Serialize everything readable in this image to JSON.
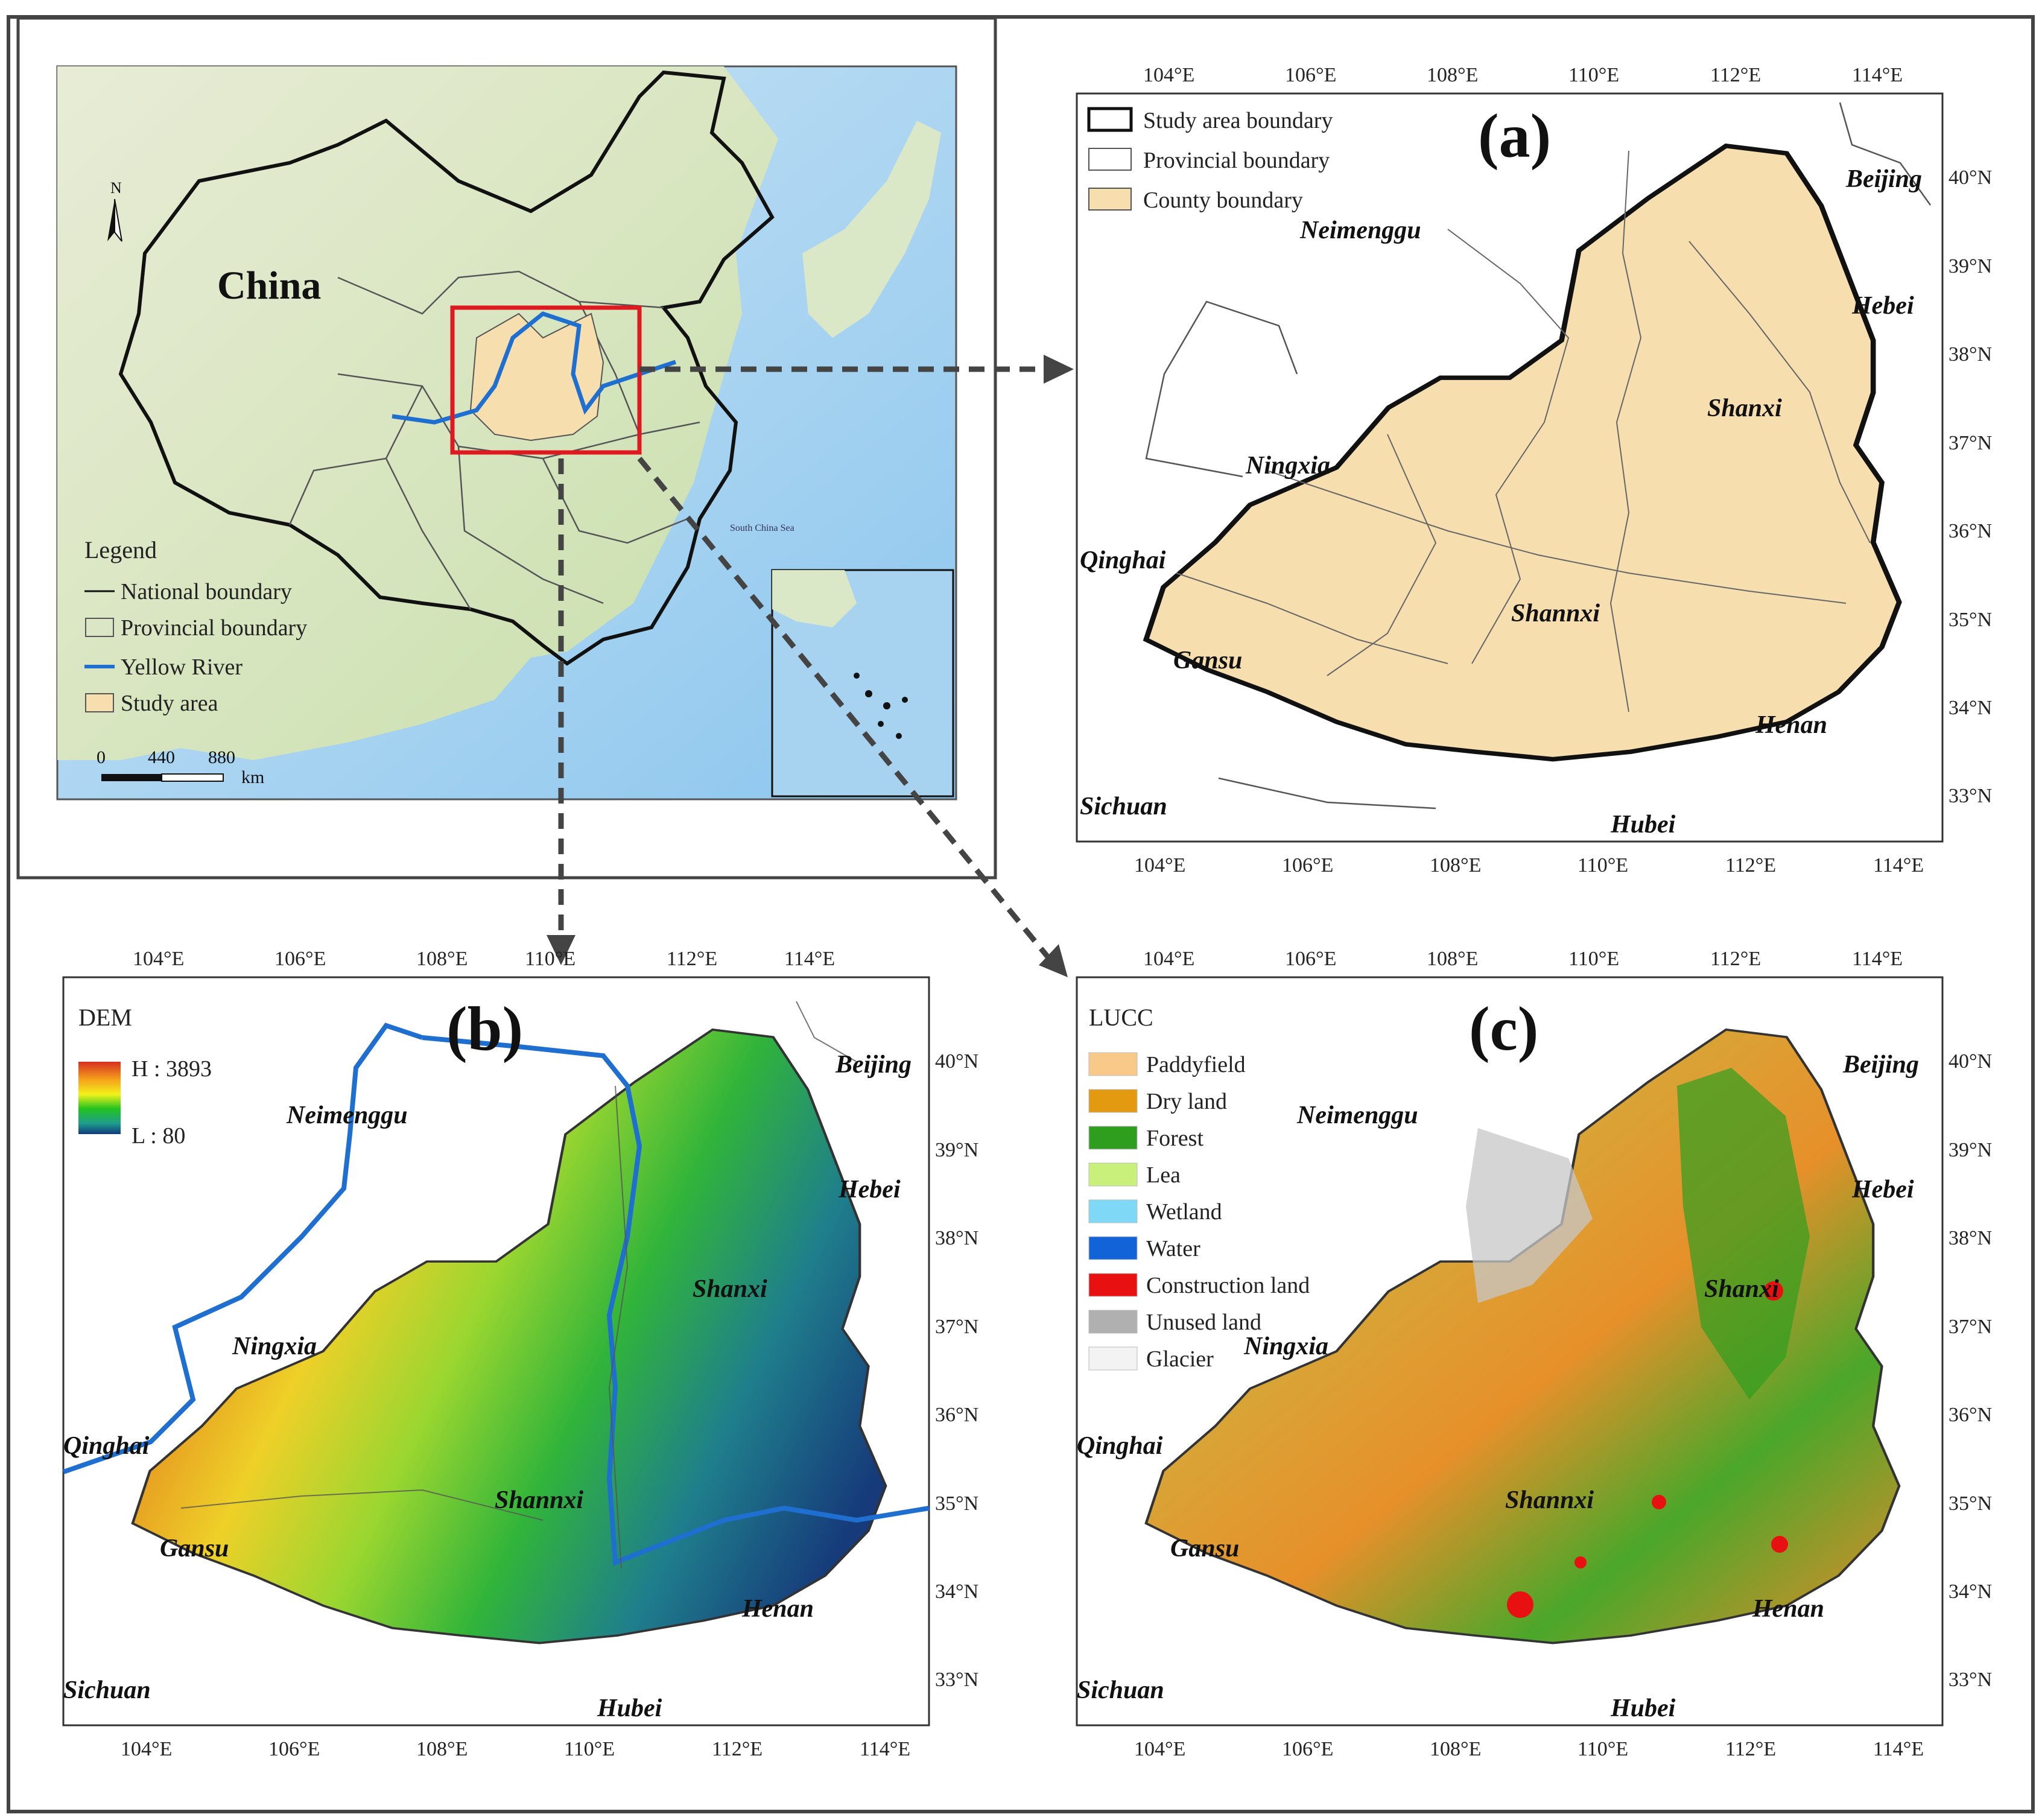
{
  "inset": {
    "country_label": "China",
    "north": "N",
    "legend": {
      "title": "Legend",
      "items": [
        {
          "label": "National boundary",
          "color": "#000000"
        },
        {
          "label": "Provincial boundary",
          "color": "#555555"
        },
        {
          "label": "Yellow River",
          "color": "#1f6fd1"
        },
        {
          "label": "Study area",
          "color": "#f6deaf"
        }
      ]
    },
    "scale": {
      "ticks": [
        "0",
        "440",
        "880"
      ],
      "unit": "km"
    },
    "sea_labels": [
      "South China Sea"
    ]
  },
  "panel_a": {
    "label": "(a)",
    "legend": [
      {
        "label": "Study area boundary"
      },
      {
        "label": "Provincial boundary"
      },
      {
        "label": "County boundary",
        "color": "#f6deaf"
      }
    ],
    "provinces": [
      "Beijing",
      "Neimenggu",
      "Hebei",
      "Shanxi",
      "Ningxia",
      "Qinghai",
      "Shannxi",
      "Gansu",
      "Henan",
      "Sichuan",
      "Hubei"
    ]
  },
  "panel_b": {
    "label": "(b)",
    "legend": {
      "title": "DEM",
      "high": "H : 3893",
      "low": "L : 80"
    },
    "provinces": [
      "Beijing",
      "Neimenggu",
      "Hebei",
      "Shanxi",
      "Ningxia",
      "Qinghai",
      "Shannxi",
      "Gansu",
      "Henan",
      "Sichuan",
      "Hubei"
    ]
  },
  "panel_c": {
    "label": "(c)",
    "legend": {
      "title": "LUCC",
      "items": [
        {
          "label": "Paddyfield",
          "color": "#f9c98a"
        },
        {
          "label": "Dry land",
          "color": "#e39a10"
        },
        {
          "label": "Forest",
          "color": "#2f9e1f"
        },
        {
          "label": "Lea",
          "color": "#c9f07a"
        },
        {
          "label": "Wetland",
          "color": "#7fd8f5"
        },
        {
          "label": "Water",
          "color": "#1262d8"
        },
        {
          "label": "Construction land",
          "color": "#e81010"
        },
        {
          "label": "Unused land",
          "color": "#b0b0b0"
        },
        {
          "label": "Glacier",
          "color": "#f3f3f3"
        }
      ]
    },
    "provinces": [
      "Beijing",
      "Neimenggu",
      "Hebei",
      "Shanxi",
      "Ningxia",
      "Qinghai",
      "Shannxi",
      "Gansu",
      "Henan",
      "Sichuan",
      "Hubei"
    ]
  },
  "axes": {
    "lon_labels": [
      "104°E",
      "106°E",
      "108°E",
      "110°E",
      "112°E",
      "114°E"
    ],
    "lat_labels": [
      "40°N",
      "39°N",
      "38°N",
      "37°N",
      "36°N",
      "35°N",
      "34°N",
      "33°N"
    ]
  }
}
